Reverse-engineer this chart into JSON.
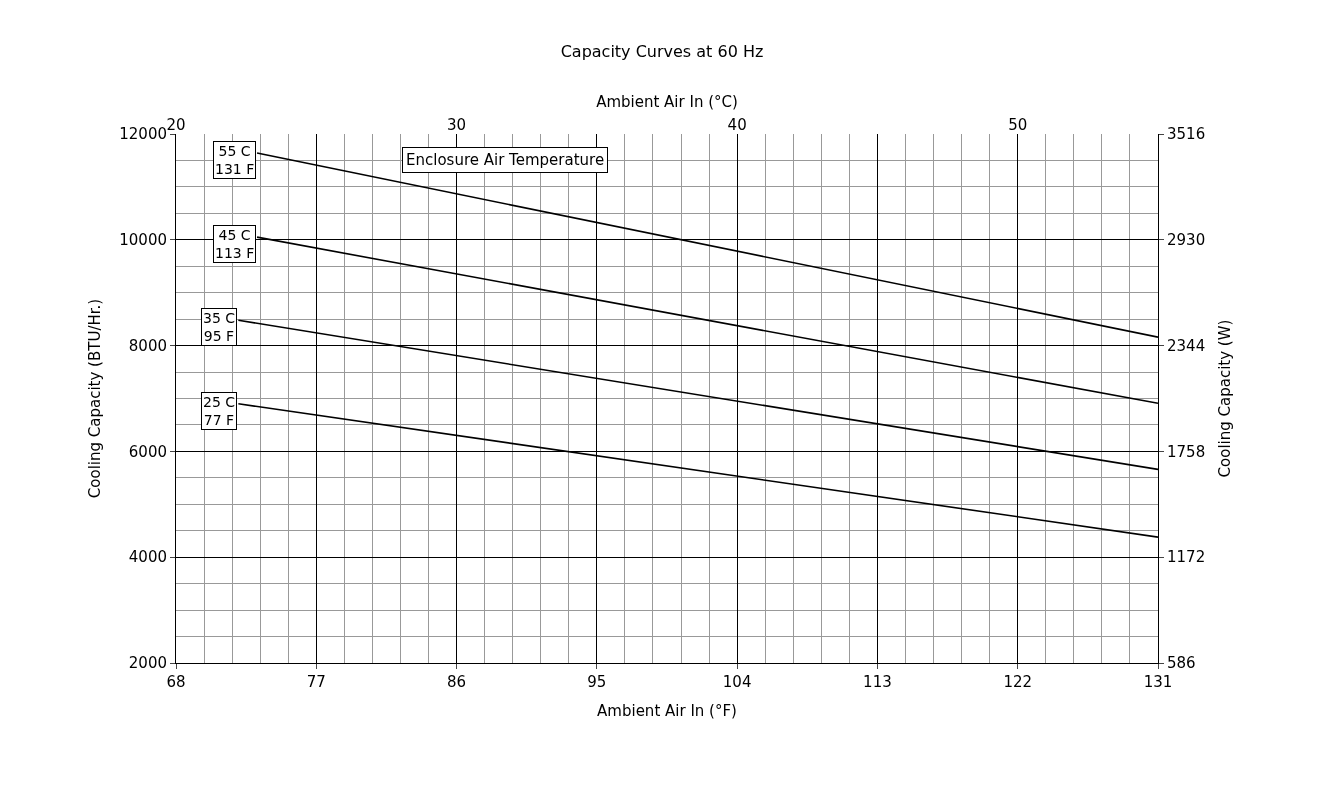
{
  "chart_data": {
    "type": "line",
    "title": "Capacity Curves at 60 Hz",
    "xlabel": "Ambient Air In (°F)",
    "ylabel": "Cooling Capacity (BTU/Hr.)",
    "y2label": "Cooling Capacity (W)",
    "x2label": "Ambient Air In (°C)",
    "xlim": [
      68,
      131
    ],
    "xticks": [
      68,
      77,
      86,
      95,
      104,
      113,
      122,
      131
    ],
    "ylim": [
      2000,
      12000
    ],
    "yticks": [
      2000,
      4000,
      6000,
      8000,
      10000,
      12000
    ],
    "x2lim": [
      20,
      55
    ],
    "x2ticks": [
      20,
      30,
      40,
      50
    ],
    "y2lim": [
      586,
      3516
    ],
    "y2ticks": [
      586,
      1172,
      1758,
      2344,
      2930,
      3516
    ],
    "grid": true,
    "legend": false,
    "marker": "none",
    "line_style": "solid",
    "annotations": [
      "Enclosure Air Temperature"
    ],
    "series": [
      {
        "name": "55 C\n131 F",
        "color": "#000000",
        "x": [
          73.2,
          131
        ],
        "values": [
          11640,
          8160
        ]
      },
      {
        "name": "45 C\n113 F",
        "color": "#000000",
        "x": [
          73.2,
          131
        ],
        "values": [
          10050,
          6910
        ]
      },
      {
        "name": "35 C\n95 F",
        "color": "#000000",
        "x": [
          72,
          131
        ],
        "values": [
          8480,
          5660
        ]
      },
      {
        "name": "25 C\n77 F",
        "color": "#000000",
        "x": [
          72,
          131
        ],
        "values": [
          6900,
          4380
        ]
      }
    ]
  }
}
